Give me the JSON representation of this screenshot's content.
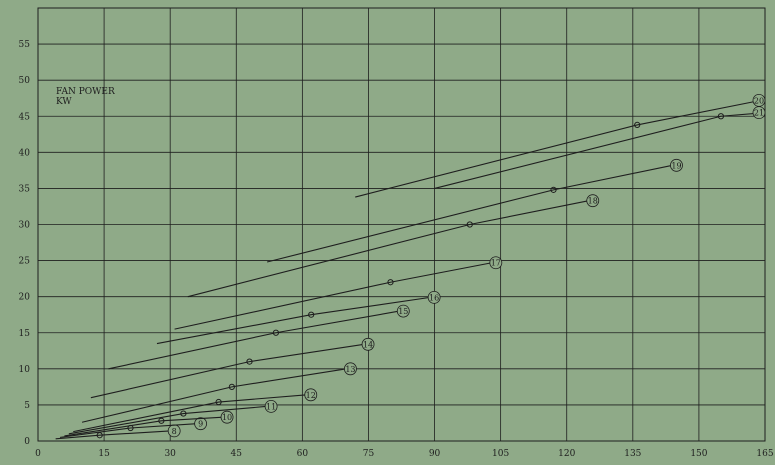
{
  "chart_data": {
    "type": "line",
    "title": "",
    "ylabel_lines": [
      "FAN POWER",
      "KW"
    ],
    "xlabel": "",
    "xlim": [
      0,
      165
    ],
    "ylim": [
      0,
      60
    ],
    "xticks": [
      0,
      15,
      30,
      45,
      60,
      75,
      90,
      105,
      120,
      135,
      150,
      165
    ],
    "yticks": [
      0,
      5,
      10,
      15,
      20,
      25,
      30,
      35,
      40,
      45,
      50,
      55
    ],
    "grid": true,
    "colors": {
      "background": "#8faa88",
      "line": "#1e1e1e",
      "grid": "#1e1e1e",
      "marker": "#1e1e1e"
    },
    "series": [
      {
        "label": "8",
        "x": [
          4,
          14,
          30
        ],
        "y": [
          0.3,
          0.8,
          1.4
        ],
        "marker": [
          14,
          0.8
        ]
      },
      {
        "label": "9",
        "x": [
          5,
          21,
          36
        ],
        "y": [
          0.5,
          1.8,
          2.4
        ],
        "marker": [
          21,
          1.8
        ]
      },
      {
        "label": "10",
        "x": [
          6,
          28,
          42
        ],
        "y": [
          0.7,
          2.8,
          3.3
        ],
        "marker": [
          28,
          2.8
        ]
      },
      {
        "label": "11",
        "x": [
          7,
          33,
          52
        ],
        "y": [
          1.0,
          3.8,
          4.8
        ],
        "marker": [
          33,
          3.8
        ]
      },
      {
        "label": "12",
        "x": [
          8,
          41,
          61
        ],
        "y": [
          1.3,
          5.4,
          6.4
        ],
        "marker": [
          41,
          5.4
        ]
      },
      {
        "label": "13",
        "x": [
          10,
          44,
          70
        ],
        "y": [
          2.6,
          7.5,
          10.0
        ],
        "marker": [
          44,
          7.5
        ]
      },
      {
        "label": "14",
        "x": [
          12,
          48,
          74
        ],
        "y": [
          6.0,
          11.0,
          13.4
        ],
        "marker": [
          48,
          11.0
        ]
      },
      {
        "label": "15",
        "x": [
          16,
          54,
          82
        ],
        "y": [
          10.0,
          15.0,
          18.0
        ],
        "marker": [
          54,
          15.0
        ]
      },
      {
        "label": "16",
        "x": [
          27,
          62,
          89
        ],
        "y": [
          13.5,
          17.5,
          19.9
        ],
        "marker": [
          62,
          17.5
        ]
      },
      {
        "label": "17",
        "x": [
          31,
          80,
          103
        ],
        "y": [
          15.5,
          22.0,
          24.7
        ],
        "marker": [
          80,
          22.0
        ]
      },
      {
        "label": "18",
        "x": [
          34,
          98,
          125
        ],
        "y": [
          20.0,
          30.0,
          33.3
        ],
        "marker": [
          98,
          30.0
        ]
      },
      {
        "label": "19",
        "x": [
          52,
          117,
          144
        ],
        "y": [
          24.8,
          34.8,
          38.2
        ],
        "marker": [
          117,
          34.8
        ]
      },
      {
        "label": "20",
        "x": [
          72,
          136,
          164
        ],
        "y": [
          33.8,
          43.8,
          47.2
        ],
        "marker": [
          136,
          43.8
        ]
      },
      {
        "label": "21",
        "x": [
          90,
          155,
          165
        ],
        "y": [
          35.0,
          45.0,
          45.5
        ],
        "marker": [
          155,
          45.0
        ]
      }
    ]
  }
}
